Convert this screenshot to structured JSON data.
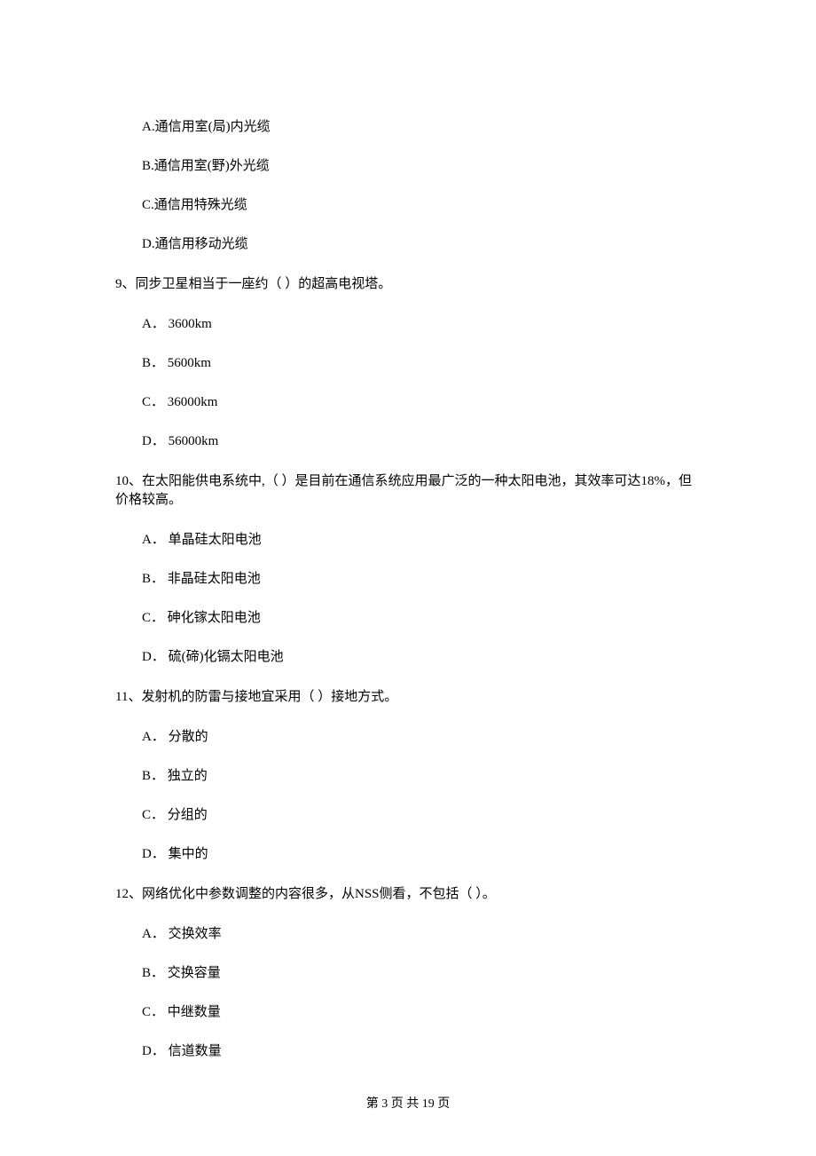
{
  "q8_options": {
    "a": "A.通信用室(局)内光缆",
    "b": "B.通信用室(野)外光缆",
    "c": "C.通信用特殊光缆",
    "d": "D.通信用移动光缆"
  },
  "q9": {
    "stem": "9、同步卫星相当于一座约（    ）的超高电视塔。",
    "a": "A． 3600km",
    "b": "B． 5600km",
    "c": "C． 36000km",
    "d": "D． 56000km"
  },
  "q10": {
    "stem": "10、在太阳能供电系统中,（    ）是目前在通信系统应用最广泛的一种太阳电池，其效率可达18%，但价格较高。",
    "a": "A． 单晶硅太阳电池",
    "b": "B． 非晶硅太阳电池",
    "c": "C． 砷化镓太阳电池",
    "d": "D． 硫(碲)化镉太阳电池"
  },
  "q11": {
    "stem": "11、发射机的防雷与接地宜采用（    ）接地方式。",
    "a": "A． 分散的",
    "b": "B． 独立的",
    "c": "C． 分组的",
    "d": "D． 集中的"
  },
  "q12": {
    "stem": "12、网络优化中参数调整的内容很多，从NSS侧看，不包括（    ）。",
    "a": "A． 交换效率",
    "b": "B． 交换容量",
    "c": "C． 中继数量",
    "d": "D． 信道数量"
  },
  "footer": "第 3 页 共 19 页"
}
